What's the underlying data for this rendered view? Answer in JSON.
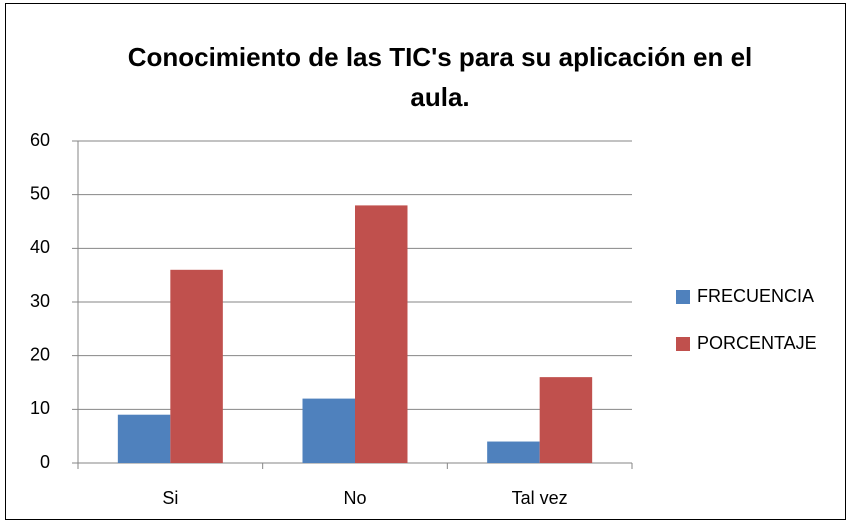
{
  "chart_data": {
    "type": "bar",
    "title": "Conocimiento de las TIC's para su aplicación en el aula.",
    "categories": [
      "Si",
      "No",
      "Tal vez"
    ],
    "series": [
      {
        "name": "FRECUENCIA",
        "color": "#4f81bd",
        "values": [
          9,
          12,
          4
        ]
      },
      {
        "name": "PORCENTAJE",
        "color": "#c0504d",
        "values": [
          36,
          48,
          16
        ]
      }
    ],
    "ylim": [
      0,
      60
    ],
    "yticks": [
      0,
      10,
      20,
      30,
      40,
      50,
      60
    ],
    "grid": true,
    "legend": "right"
  }
}
